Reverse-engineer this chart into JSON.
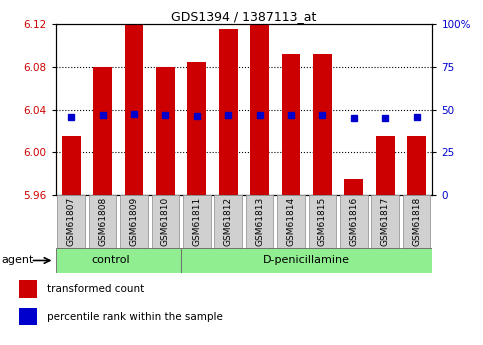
{
  "title": "GDS1394 / 1387113_at",
  "samples": [
    "GSM61807",
    "GSM61808",
    "GSM61809",
    "GSM61810",
    "GSM61811",
    "GSM61812",
    "GSM61813",
    "GSM61814",
    "GSM61815",
    "GSM61816",
    "GSM61817",
    "GSM61818"
  ],
  "red_values": [
    6.015,
    6.08,
    6.12,
    6.08,
    6.085,
    6.115,
    6.12,
    6.092,
    6.092,
    5.975,
    6.015,
    6.015
  ],
  "blue_values": [
    6.033,
    6.035,
    6.036,
    6.035,
    6.034,
    6.035,
    6.035,
    6.035,
    6.035,
    6.032,
    6.032,
    6.033
  ],
  "ylim_left": [
    5.96,
    6.12
  ],
  "ylim_right": [
    0,
    100
  ],
  "yticks_left": [
    5.96,
    6.0,
    6.04,
    6.08,
    6.12
  ],
  "yticks_right": [
    0,
    25,
    50,
    75,
    100
  ],
  "bar_color": "#CC0000",
  "dot_color": "#0000CC",
  "bar_width": 0.6,
  "background_plot": "#ffffff",
  "grid_color": "black",
  "label_red": "transformed count",
  "label_blue": "percentile rank within the sample",
  "agent_label": "agent",
  "control_label": "control",
  "dpen_label": "D-penicillamine",
  "group_bar_color": "#90EE90",
  "tick_label_color_left": "#CC0000",
  "tick_label_color_right": "#0000CC",
  "n_control": 4,
  "n_total": 12,
  "tick_box_color": "#d0d0d0"
}
